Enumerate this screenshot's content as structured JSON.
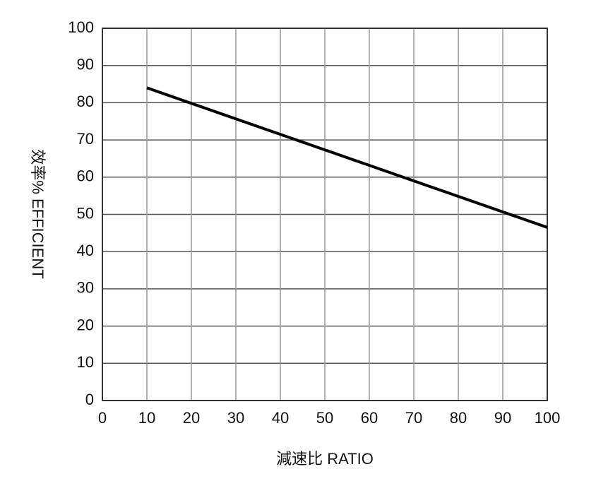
{
  "chart_data": {
    "type": "line",
    "x_label": "減速比 RATIO",
    "y_label": "效率% EFFICIENT",
    "x": [
      10,
      100
    ],
    "series": [
      {
        "color": "#000000",
        "values": [
          84,
          46.5
        ]
      }
    ],
    "xlim": [
      0,
      100
    ],
    "xticks": [
      0,
      10,
      20,
      30,
      40,
      50,
      60,
      70,
      80,
      90,
      100
    ],
    "ylim": [
      0,
      100
    ],
    "yticks": [
      0,
      10,
      20,
      30,
      40,
      50,
      60,
      70,
      80,
      90,
      100
    ],
    "grid": true
  }
}
